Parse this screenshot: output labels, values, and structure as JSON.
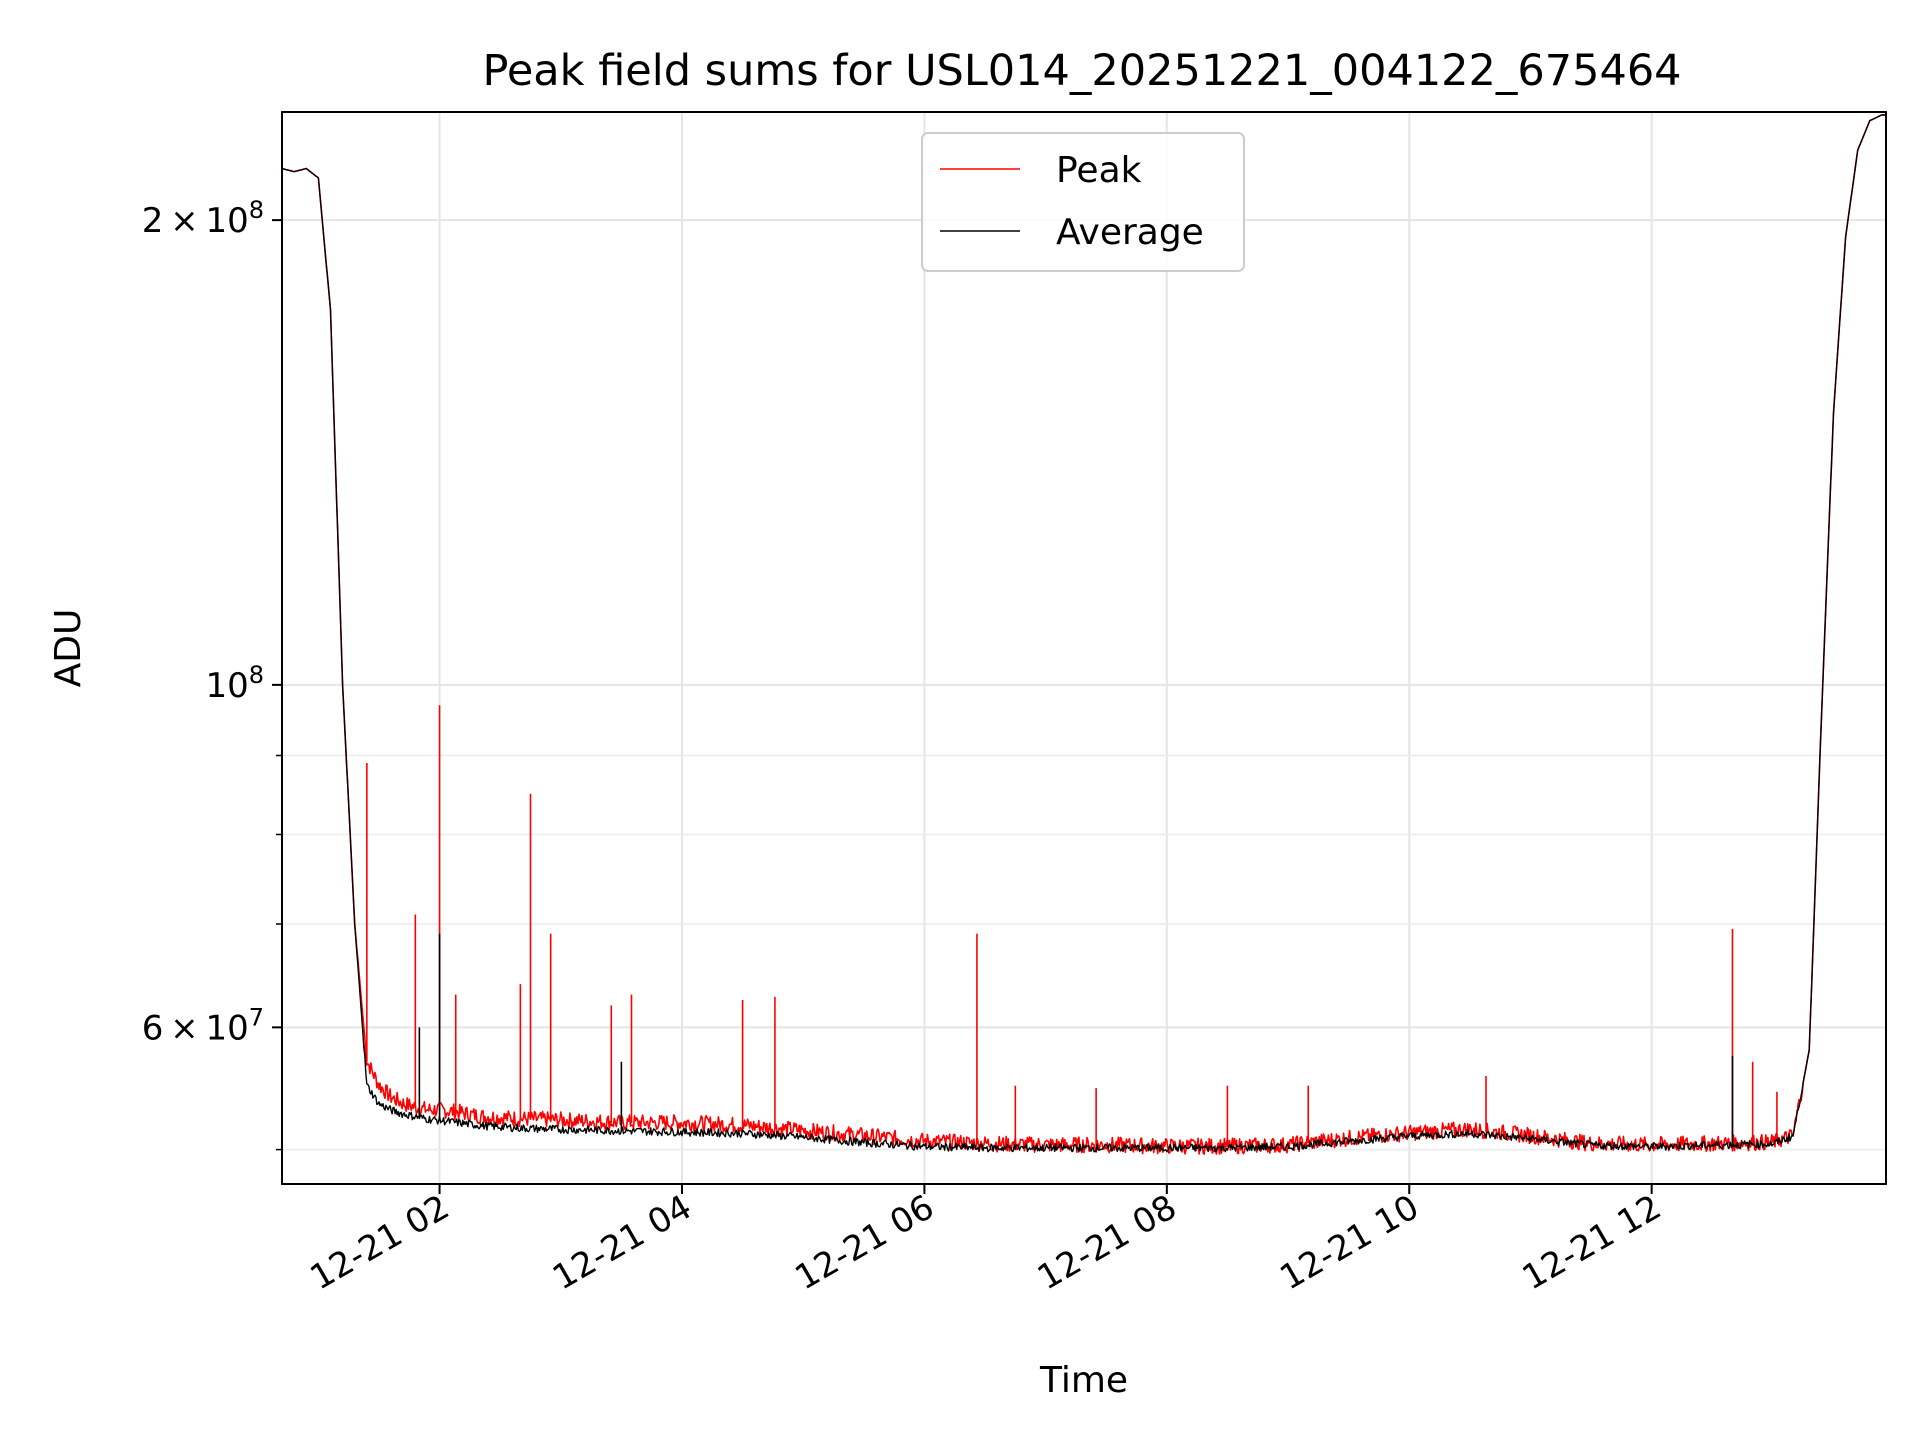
{
  "chart_data": {
    "type": "line",
    "title": "Peak field sums for USL014_20251221_004122_675464",
    "xlabel": "Time",
    "ylabel": "ADU",
    "y_scale": "log",
    "xlim": [
      "2025-12-21 00:42",
      "2025-12-21 13:56"
    ],
    "ylim": [
      47500000,
      235000000
    ],
    "x_ticks": [
      "12-21 02",
      "12-21 04",
      "12-21 06",
      "12-21 08",
      "12-21 10",
      "12-21 12"
    ],
    "x_tick_values": [
      "2025-12-21 02:00",
      "2025-12-21 04:00",
      "2025-12-21 06:00",
      "2025-12-21 08:00",
      "2025-12-21 10:00",
      "2025-12-21 12:00"
    ],
    "y_ticks": [
      {
        "value": 60000000,
        "mantissa": "6",
        "times": "×",
        "base": "10",
        "exp": "7"
      },
      {
        "value": 100000000,
        "mantissa": "",
        "times": "",
        "base": "10",
        "exp": "8"
      },
      {
        "value": 200000000,
        "mantissa": "2",
        "times": "×",
        "base": "10",
        "exp": "8"
      }
    ],
    "y_minor_ticks": [
      50000000,
      70000000,
      80000000,
      90000000
    ],
    "grid": true,
    "legend": "top-center",
    "x": [
      "00:42",
      "00:48",
      "00:54",
      "01:00",
      "01:06",
      "01:12",
      "01:18",
      "01:24",
      "01:30",
      "01:36",
      "01:42",
      "01:48",
      "01:54",
      "02:00",
      "02:10",
      "02:20",
      "02:40",
      "03:00",
      "03:30",
      "04:00",
      "04:30",
      "05:00",
      "05:30",
      "06:00",
      "06:30",
      "07:00",
      "07:30",
      "08:00",
      "08:30",
      "09:00",
      "09:30",
      "10:00",
      "10:30",
      "11:00",
      "11:30",
      "12:00",
      "12:30",
      "13:00",
      "13:10",
      "13:18",
      "13:24",
      "13:30",
      "13:36",
      "13:42",
      "13:48",
      "13:54",
      "13:56"
    ],
    "series": [
      {
        "name": "Peak",
        "color": "#ff0000",
        "values": [
          216000000,
          215000000,
          216000000,
          213000000,
          175000000,
          100000000,
          70000000,
          57000000,
          55000000,
          54000000,
          53500000,
          53200000,
          53000000,
          53000000,
          52800000,
          52500000,
          52300000,
          52200000,
          52000000,
          52000000,
          51800000,
          51400000,
          51000000,
          50600000,
          50400000,
          50300000,
          50300000,
          50200000,
          50200000,
          50300000,
          50800000,
          51200000,
          51500000,
          51000000,
          50400000,
          50300000,
          50400000,
          50500000,
          51000000,
          58000000,
          95000000,
          150000000,
          195000000,
          222000000,
          232000000,
          234000000,
          234000000
        ],
        "spikes": [
          {
            "time": "01:24",
            "value": 89000000
          },
          {
            "time": "01:48",
            "value": 71000000
          },
          {
            "time": "02:00",
            "value": 97000000
          },
          {
            "time": "02:08",
            "value": 63000000
          },
          {
            "time": "02:40",
            "value": 64000000
          },
          {
            "time": "02:45",
            "value": 85000000
          },
          {
            "time": "02:55",
            "value": 69000000
          },
          {
            "time": "03:25",
            "value": 62000000
          },
          {
            "time": "03:35",
            "value": 63000000
          },
          {
            "time": "04:30",
            "value": 62500000
          },
          {
            "time": "04:46",
            "value": 62800000
          },
          {
            "time": "06:26",
            "value": 69000000
          },
          {
            "time": "06:45",
            "value": 55000000
          },
          {
            "time": "07:25",
            "value": 54800000
          },
          {
            "time": "08:30",
            "value": 55000000
          },
          {
            "time": "09:10",
            "value": 55000000
          },
          {
            "time": "10:38",
            "value": 55800000
          },
          {
            "time": "12:40",
            "value": 69500000
          },
          {
            "time": "12:50",
            "value": 57000000
          },
          {
            "time": "13:02",
            "value": 54500000
          }
        ]
      },
      {
        "name": "Average",
        "color": "#000000",
        "values": [
          216000000,
          215000000,
          216000000,
          213000000,
          175000000,
          100000000,
          70000000,
          55000000,
          53500000,
          53000000,
          52700000,
          52500000,
          52300000,
          52200000,
          52000000,
          51800000,
          51600000,
          51500000,
          51400000,
          51300000,
          51200000,
          50900000,
          50500000,
          50200000,
          50100000,
          50100000,
          50100000,
          50100000,
          50100000,
          50200000,
          50600000,
          51000000,
          51200000,
          50800000,
          50300000,
          50200000,
          50300000,
          50400000,
          51000000,
          58000000,
          95000000,
          150000000,
          195000000,
          222000000,
          232000000,
          234000000,
          234000000
        ],
        "spikes": [
          {
            "time": "02:00",
            "value": 69000000
          },
          {
            "time": "01:50",
            "value": 60000000
          },
          {
            "time": "03:30",
            "value": 57000000
          },
          {
            "time": "12:40",
            "value": 57500000
          }
        ]
      }
    ]
  }
}
